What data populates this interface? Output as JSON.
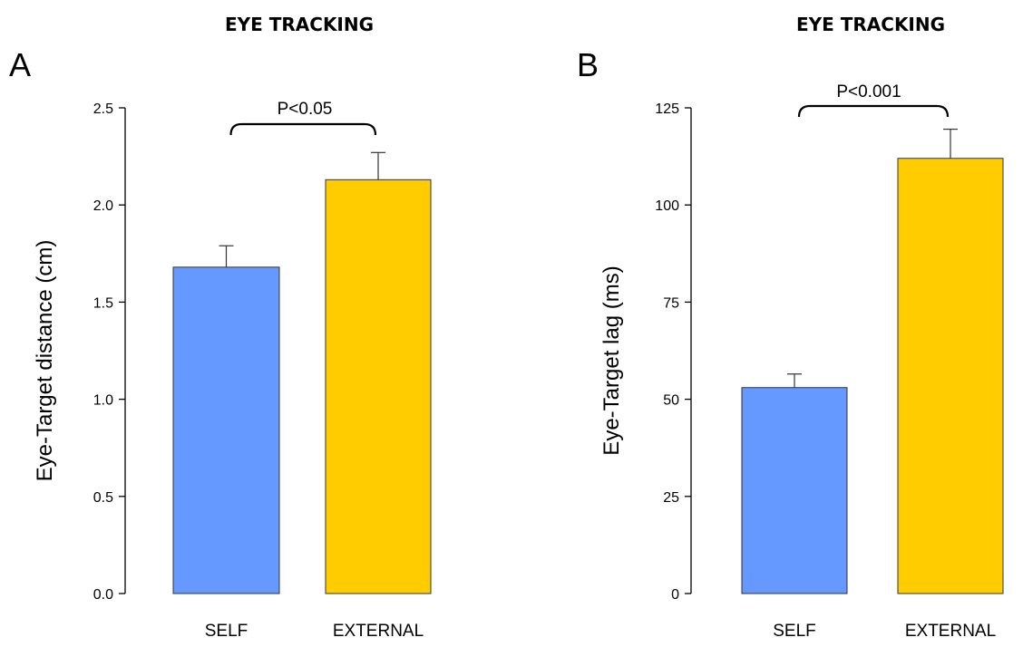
{
  "chart_data": [
    {
      "type": "bar",
      "panel_label": "A",
      "title": "EYE TRACKING",
      "xlabel": "",
      "ylabel": "Eye-Target distance (cm)",
      "categories": [
        "SELF",
        "EXTERNAL"
      ],
      "values": [
        1.68,
        2.13
      ],
      "errors": [
        0.11,
        0.14
      ],
      "colors": [
        "#6699ff",
        "#ffcc00"
      ],
      "ylim": [
        0,
        2.5
      ],
      "yticks": [
        "0.0",
        "0.5",
        "1.0",
        "1.5",
        "2.0",
        "2.5"
      ],
      "annotation": "P<0.05",
      "grid": false
    },
    {
      "type": "bar",
      "panel_label": "B",
      "title": "EYE TRACKING",
      "xlabel": "",
      "ylabel": "Eye-Target lag (ms)",
      "categories": [
        "SELF",
        "EXTERNAL"
      ],
      "values": [
        53,
        112
      ],
      "errors": [
        3.5,
        7.5
      ],
      "colors": [
        "#6699ff",
        "#ffcc00"
      ],
      "ylim": [
        0,
        125
      ],
      "yticks": [
        "0",
        "25",
        "50",
        "75",
        "100",
        "125"
      ],
      "annotation": "P<0.001",
      "grid": false
    }
  ]
}
